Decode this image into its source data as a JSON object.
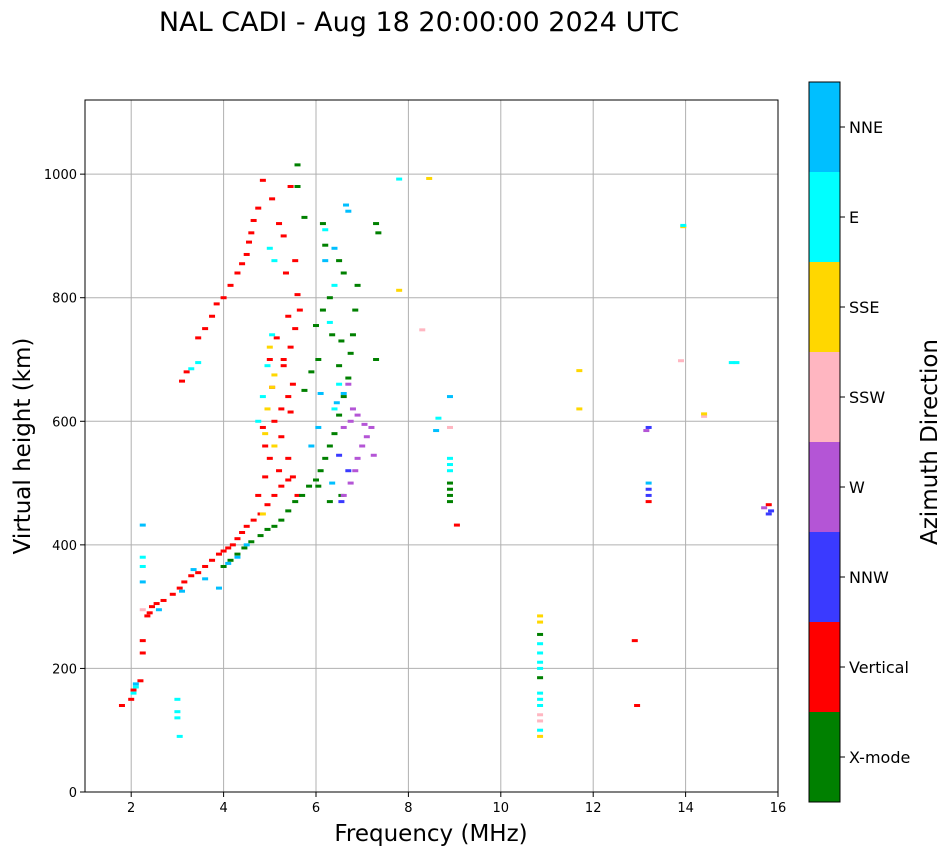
{
  "chart_data": {
    "type": "scatter",
    "title": "NAL CADI - Aug 18 20:00:00 2024 UTC",
    "xlabel": "Frequency (MHz)",
    "ylabel": "Virtual height (km)",
    "xlim": [
      1,
      16
    ],
    "ylim": [
      0,
      1120
    ],
    "xticks": [
      2,
      4,
      6,
      8,
      10,
      12,
      14,
      16
    ],
    "yticks": [
      0,
      200,
      400,
      600,
      800,
      1000
    ],
    "grid": true,
    "colorbar": {
      "label": "Azimuth Direction",
      "categories": [
        {
          "name": "X-mode",
          "color": "#008000"
        },
        {
          "name": "Vertical",
          "color": "#ff0000"
        },
        {
          "name": "NNW",
          "color": "#3a3aff"
        },
        {
          "name": "W",
          "color": "#b455d6"
        },
        {
          "name": "SSW",
          "color": "#ffb6c1"
        },
        {
          "name": "SSE",
          "color": "#ffd700"
        },
        {
          "name": "E",
          "color": "#00ffff"
        },
        {
          "name": "NNE",
          "color": "#00bfff"
        }
      ]
    },
    "series": [
      {
        "name": "Vertical",
        "color": "#ff0000",
        "points": [
          [
            1.8,
            140
          ],
          [
            2.0,
            150
          ],
          [
            2.05,
            165
          ],
          [
            2.2,
            180
          ],
          [
            2.25,
            225
          ],
          [
            2.25,
            245
          ],
          [
            2.35,
            285
          ],
          [
            2.4,
            290
          ],
          [
            2.45,
            300
          ],
          [
            2.55,
            305
          ],
          [
            2.7,
            310
          ],
          [
            2.9,
            320
          ],
          [
            3.05,
            330
          ],
          [
            3.15,
            340
          ],
          [
            3.3,
            350
          ],
          [
            3.45,
            355
          ],
          [
            3.6,
            365
          ],
          [
            3.75,
            375
          ],
          [
            3.9,
            385
          ],
          [
            4.0,
            390
          ],
          [
            4.1,
            395
          ],
          [
            4.2,
            400
          ],
          [
            4.3,
            410
          ],
          [
            4.4,
            420
          ],
          [
            4.5,
            430
          ],
          [
            4.65,
            440
          ],
          [
            4.8,
            450
          ],
          [
            4.95,
            465
          ],
          [
            5.1,
            480
          ],
          [
            5.25,
            495
          ],
          [
            5.4,
            505
          ],
          [
            5.2,
            520
          ],
          [
            5.0,
            540
          ],
          [
            4.9,
            560
          ],
          [
            4.85,
            590
          ],
          [
            5.1,
            600
          ],
          [
            5.25,
            620
          ],
          [
            5.4,
            640
          ],
          [
            5.5,
            660
          ],
          [
            5.3,
            700
          ],
          [
            5.45,
            720
          ],
          [
            5.55,
            750
          ],
          [
            5.65,
            780
          ],
          [
            3.1,
            665
          ],
          [
            3.2,
            680
          ],
          [
            3.45,
            735
          ],
          [
            3.6,
            750
          ],
          [
            3.75,
            770
          ],
          [
            3.85,
            790
          ],
          [
            4.0,
            800
          ],
          [
            4.15,
            820
          ],
          [
            4.3,
            840
          ],
          [
            4.4,
            855
          ],
          [
            4.5,
            870
          ],
          [
            4.55,
            890
          ],
          [
            4.6,
            905
          ],
          [
            4.65,
            925
          ],
          [
            4.75,
            945
          ],
          [
            4.85,
            990
          ],
          [
            5.05,
            960
          ],
          [
            5.2,
            920
          ],
          [
            5.3,
            900
          ],
          [
            5.45,
            980
          ],
          [
            5.35,
            840
          ],
          [
            5.55,
            860
          ],
          [
            5.6,
            805
          ],
          [
            5.4,
            770
          ],
          [
            5.15,
            735
          ],
          [
            5.3,
            690
          ],
          [
            5.05,
            655
          ],
          [
            5.45,
            615
          ],
          [
            5.25,
            575
          ],
          [
            5.4,
            540
          ],
          [
            5.5,
            510
          ],
          [
            5.6,
            480
          ],
          [
            4.75,
            480
          ],
          [
            4.9,
            510
          ],
          [
            5.0,
            700
          ],
          [
            9.05,
            432
          ],
          [
            12.9,
            245
          ],
          [
            12.95,
            140
          ],
          [
            13.2,
            470
          ],
          [
            15.8,
            465
          ]
        ]
      },
      {
        "name": "X-mode",
        "color": "#008000",
        "points": [
          [
            4.0,
            365
          ],
          [
            4.15,
            375
          ],
          [
            4.3,
            385
          ],
          [
            4.45,
            395
          ],
          [
            4.6,
            405
          ],
          [
            4.8,
            415
          ],
          [
            4.95,
            425
          ],
          [
            5.1,
            430
          ],
          [
            5.25,
            440
          ],
          [
            5.4,
            455
          ],
          [
            5.55,
            470
          ],
          [
            5.7,
            480
          ],
          [
            5.85,
            495
          ],
          [
            6.0,
            505
          ],
          [
            6.1,
            520
          ],
          [
            6.2,
            540
          ],
          [
            6.3,
            560
          ],
          [
            6.4,
            580
          ],
          [
            6.5,
            610
          ],
          [
            6.6,
            640
          ],
          [
            6.7,
            670
          ],
          [
            6.75,
            710
          ],
          [
            6.8,
            740
          ],
          [
            6.85,
            780
          ],
          [
            6.9,
            820
          ],
          [
            6.6,
            840
          ],
          [
            6.5,
            860
          ],
          [
            6.2,
            885
          ],
          [
            6.15,
            920
          ],
          [
            6.3,
            800
          ],
          [
            6.15,
            780
          ],
          [
            6.0,
            755
          ],
          [
            6.35,
            740
          ],
          [
            6.55,
            730
          ],
          [
            6.05,
            700
          ],
          [
            5.9,
            680
          ],
          [
            5.75,
            650
          ],
          [
            6.5,
            690
          ],
          [
            6.55,
            480
          ],
          [
            6.3,
            470
          ],
          [
            6.05,
            495
          ],
          [
            7.3,
            700
          ],
          [
            7.35,
            905
          ],
          [
            7.3,
            920
          ],
          [
            5.6,
            1015
          ],
          [
            5.6,
            980
          ],
          [
            5.75,
            930
          ],
          [
            8.9,
            470
          ],
          [
            8.9,
            480
          ],
          [
            8.9,
            490
          ],
          [
            8.9,
            500
          ],
          [
            10.85,
            185
          ],
          [
            10.85,
            255
          ]
        ]
      },
      {
        "name": "NNW",
        "color": "#3a3aff",
        "points": [
          [
            6.55,
            470
          ],
          [
            6.7,
            520
          ],
          [
            6.5,
            545
          ],
          [
            13.2,
            480
          ],
          [
            13.2,
            490
          ],
          [
            13.2,
            590
          ],
          [
            15.8,
            450
          ],
          [
            15.85,
            455
          ]
        ]
      },
      {
        "name": "W",
        "color": "#b455d6",
        "points": [
          [
            6.6,
            480
          ],
          [
            6.75,
            500
          ],
          [
            6.85,
            520
          ],
          [
            6.9,
            540
          ],
          [
            7.0,
            560
          ],
          [
            7.1,
            575
          ],
          [
            7.2,
            590
          ],
          [
            6.75,
            600
          ],
          [
            6.8,
            620
          ],
          [
            6.7,
            660
          ],
          [
            6.9,
            610
          ],
          [
            7.05,
            595
          ],
          [
            7.25,
            545
          ],
          [
            6.6,
            590
          ],
          [
            13.15,
            585
          ],
          [
            15.7,
            460
          ]
        ]
      },
      {
        "name": "SSW",
        "color": "#ffb6c1",
        "points": [
          [
            2.25,
            295
          ],
          [
            8.3,
            748
          ],
          [
            8.9,
            590
          ],
          [
            10.85,
            115
          ],
          [
            10.85,
            125
          ],
          [
            13.9,
            698
          ],
          [
            14.4,
            608
          ]
        ]
      },
      {
        "name": "SSE",
        "color": "#ffd700",
        "points": [
          [
            4.85,
            450
          ],
          [
            5.1,
            560
          ],
          [
            4.95,
            620
          ],
          [
            5.05,
            655
          ],
          [
            5.1,
            675
          ],
          [
            5.0,
            720
          ],
          [
            4.9,
            580
          ],
          [
            8.45,
            993
          ],
          [
            7.8,
            812
          ],
          [
            10.85,
            90
          ],
          [
            10.85,
            275
          ],
          [
            10.85,
            285
          ],
          [
            11.7,
            620
          ],
          [
            11.7,
            682
          ],
          [
            14.4,
            612
          ],
          [
            13.95,
            915
          ]
        ]
      },
      {
        "name": "E",
        "color": "#00ffff",
        "points": [
          [
            2.1,
            170
          ],
          [
            2.05,
            160
          ],
          [
            2.25,
            380
          ],
          [
            2.25,
            365
          ],
          [
            3.0,
            150
          ],
          [
            3.0,
            130
          ],
          [
            3.0,
            120
          ],
          [
            3.05,
            90
          ],
          [
            3.3,
            685
          ],
          [
            3.45,
            695
          ],
          [
            4.75,
            600
          ],
          [
            4.85,
            640
          ],
          [
            4.95,
            690
          ],
          [
            5.05,
            740
          ],
          [
            5.0,
            880
          ],
          [
            5.1,
            860
          ],
          [
            6.4,
            620
          ],
          [
            6.5,
            660
          ],
          [
            6.3,
            760
          ],
          [
            6.4,
            820
          ],
          [
            6.2,
            910
          ],
          [
            8.9,
            520
          ],
          [
            8.9,
            530
          ],
          [
            8.9,
            540
          ],
          [
            8.65,
            605
          ],
          [
            10.85,
            140
          ],
          [
            10.85,
            150
          ],
          [
            10.85,
            160
          ],
          [
            10.85,
            200
          ],
          [
            10.85,
            210
          ],
          [
            10.85,
            225
          ],
          [
            10.85,
            240
          ],
          [
            10.85,
            100
          ],
          [
            13.95,
            917
          ],
          [
            15.0,
            695
          ],
          [
            15.1,
            695
          ],
          [
            7.8,
            992
          ]
        ]
      },
      {
        "name": "NNE",
        "color": "#00bfff",
        "points": [
          [
            2.25,
            432
          ],
          [
            2.1,
            175
          ],
          [
            2.25,
            340
          ],
          [
            2.6,
            295
          ],
          [
            3.1,
            325
          ],
          [
            3.35,
            360
          ],
          [
            3.6,
            345
          ],
          [
            3.9,
            330
          ],
          [
            4.1,
            370
          ],
          [
            4.3,
            380
          ],
          [
            4.5,
            400
          ],
          [
            6.45,
            630
          ],
          [
            6.6,
            645
          ],
          [
            6.65,
            950
          ],
          [
            6.7,
            940
          ],
          [
            6.2,
            860
          ],
          [
            6.4,
            880
          ],
          [
            6.35,
            500
          ],
          [
            6.05,
            590
          ],
          [
            8.9,
            640
          ],
          [
            8.6,
            585
          ],
          [
            13.2,
            500
          ],
          [
            6.1,
            645
          ],
          [
            5.9,
            560
          ]
        ]
      }
    ]
  }
}
